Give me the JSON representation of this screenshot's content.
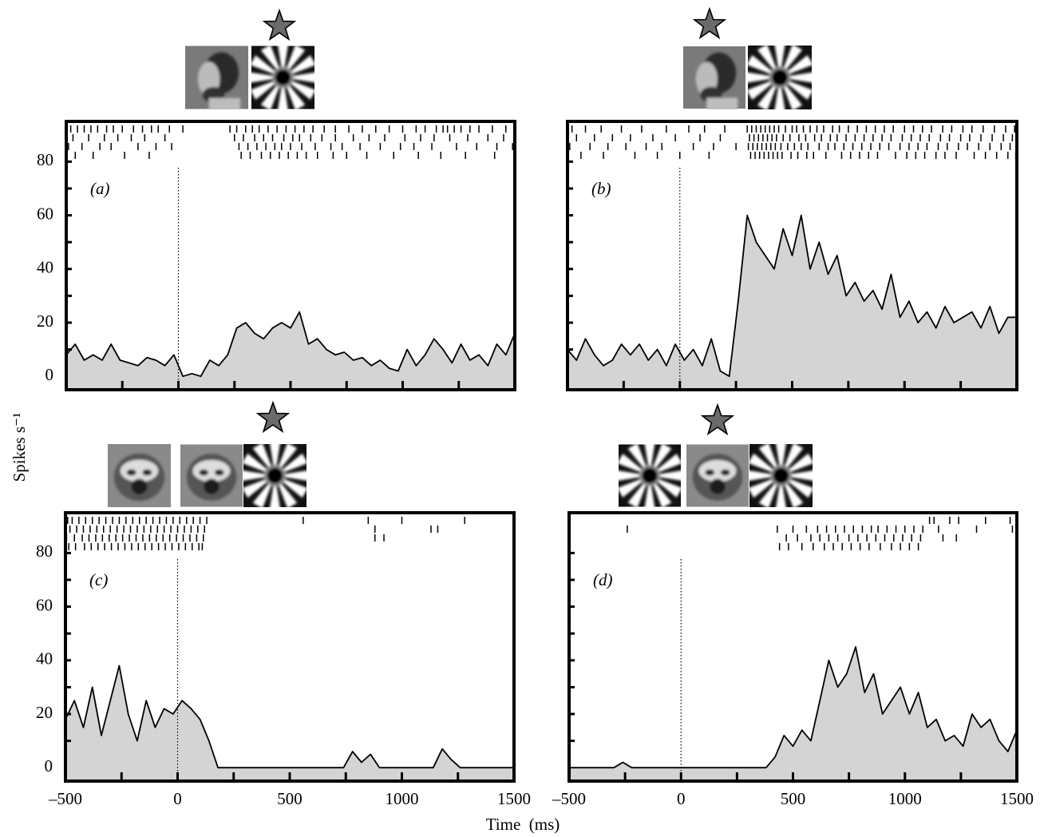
{
  "chart_data": [
    {
      "type": "area",
      "label": "(a)",
      "xlim": [
        -500,
        1500
      ],
      "ylim": [
        -5,
        95
      ],
      "vline": 0,
      "ytick_marks": [
        10,
        20,
        30,
        40,
        50,
        60,
        70,
        80
      ],
      "yticks": [
        0,
        20,
        40,
        60,
        80
      ],
      "xtick_marks": [
        -250,
        0,
        250,
        500,
        750,
        1000,
        1250
      ],
      "x": [
        -500,
        -460,
        -420,
        -380,
        -340,
        -300,
        -260,
        -220,
        -180,
        -140,
        -100,
        -60,
        -20,
        20,
        60,
        100,
        140,
        180,
        220,
        260,
        300,
        340,
        380,
        420,
        460,
        500,
        540,
        580,
        620,
        660,
        700,
        740,
        780,
        820,
        860,
        900,
        940,
        980,
        1020,
        1060,
        1100,
        1140,
        1180,
        1220,
        1260,
        1300,
        1340,
        1380,
        1420,
        1460,
        1500
      ],
      "values": [
        8,
        12,
        6,
        8,
        6,
        12,
        6,
        5,
        4,
        7,
        6,
        4,
        8,
        0,
        1,
        0,
        6,
        4,
        8,
        18,
        20,
        16,
        14,
        18,
        20,
        18,
        24,
        12,
        14,
        10,
        8,
        9,
        6,
        7,
        4,
        6,
        3,
        2,
        10,
        4,
        8,
        14,
        10,
        5,
        12,
        6,
        8,
        4,
        12,
        8,
        16
      ],
      "raster": [
        [
          -480,
          -450,
          -420,
          -390,
          -360,
          -320,
          -290,
          -250,
          -200,
          -160,
          -120,
          -90,
          -40,
          20,
          230,
          260,
          300,
          330,
          360,
          400,
          440,
          480,
          520,
          560,
          600,
          650,
          700,
          760,
          820,
          880,
          940,
          1000,
          1060,
          1100,
          1150,
          1180,
          1200,
          1230,
          1260,
          1300,
          1340,
          1400,
          1460
        ],
        [
          -470,
          -400,
          -330,
          -270,
          -210,
          -150,
          -60,
          250,
          290,
          340,
          380,
          420,
          470,
          510,
          540,
          590,
          640,
          700,
          780,
          850,
          920,
          1010,
          1080,
          1140,
          1210,
          1290,
          1380,
          1450
        ],
        [
          -490,
          -430,
          -350,
          -300,
          -180,
          -100,
          -30,
          270,
          310,
          350,
          390,
          430,
          460,
          500,
          550,
          610,
          680,
          730,
          810,
          900,
          990,
          1050,
          1130,
          1240,
          1330,
          1420,
          1490
        ],
        [
          -460,
          -380,
          -240,
          -130,
          280,
          320,
          370,
          410,
          450,
          490,
          530,
          570,
          620,
          690,
          750,
          840,
          960,
          1070,
          1170,
          1280,
          1410
        ]
      ]
    },
    {
      "type": "area",
      "label": "(b)",
      "xlim": [
        -500,
        1500
      ],
      "ylim": [
        -5,
        95
      ],
      "vline": 0,
      "ytick_marks": [
        10,
        20,
        30,
        40,
        50,
        60,
        70,
        80
      ],
      "xtick_marks": [
        -250,
        0,
        250,
        500,
        750,
        1000,
        1250
      ],
      "x": [
        -500,
        -460,
        -420,
        -380,
        -340,
        -300,
        -260,
        -220,
        -180,
        -140,
        -100,
        -60,
        -20,
        20,
        60,
        100,
        140,
        180,
        220,
        260,
        300,
        340,
        380,
        420,
        460,
        500,
        540,
        580,
        620,
        660,
        700,
        740,
        780,
        820,
        860,
        900,
        940,
        980,
        1020,
        1060,
        1100,
        1140,
        1180,
        1220,
        1260,
        1300,
        1340,
        1380,
        1420,
        1460,
        1500
      ],
      "values": [
        10,
        6,
        14,
        8,
        4,
        6,
        12,
        8,
        12,
        6,
        10,
        4,
        12,
        6,
        10,
        4,
        14,
        2,
        0,
        28,
        60,
        50,
        45,
        40,
        55,
        45,
        60,
        40,
        50,
        38,
        45,
        30,
        35,
        28,
        32,
        25,
        38,
        22,
        28,
        20,
        24,
        18,
        26,
        20,
        22,
        24,
        18,
        26,
        16,
        22,
        22
      ],
      "raster": [
        [
          -480,
          -420,
          -350,
          -260,
          -170,
          -60,
          40,
          110,
          200,
          300,
          320,
          340,
          360,
          380,
          400,
          420,
          440,
          470,
          500,
          520,
          550,
          580,
          610,
          640,
          680,
          710,
          750,
          790,
          830,
          870,
          910,
          950,
          1000,
          1040,
          1080,
          1120,
          1170,
          1210,
          1260,
          1300,
          1350,
          1400,
          1450,
          1490
        ],
        [
          -460,
          -380,
          -300,
          -220,
          -120,
          -20,
          90,
          180,
          310,
          330,
          350,
          370,
          390,
          410,
          430,
          460,
          490,
          530,
          560,
          600,
          630,
          670,
          700,
          740,
          780,
          820,
          860,
          900,
          940,
          990,
          1030,
          1070,
          1110,
          1160,
          1200,
          1250,
          1290,
          1340,
          1390,
          1440,
          1480
        ],
        [
          -490,
          -400,
          -320,
          -240,
          -150,
          -80,
          60,
          150,
          250,
          305,
          325,
          345,
          365,
          385,
          405,
          425,
          450,
          480,
          510,
          540,
          570,
          620,
          660,
          690,
          730,
          770,
          810,
          850,
          890,
          930,
          980,
          1020,
          1060,
          1100,
          1150,
          1190,
          1240,
          1280,
          1330,
          1380,
          1430,
          1470
        ],
        [
          -440,
          -340,
          -200,
          -100,
          0,
          130,
          315,
          335,
          355,
          375,
          395,
          415,
          435,
          455,
          495,
          525,
          565,
          595,
          650,
          720,
          760,
          800,
          840,
          880,
          960,
          1010,
          1050,
          1090,
          1140,
          1180,
          1230,
          1310,
          1360,
          1410,
          1460,
          1495
        ]
      ]
    },
    {
      "type": "area",
      "label": "(c)",
      "xlim": [
        -500,
        1500
      ],
      "ylim": [
        -5,
        95
      ],
      "vline": 0,
      "ytick_marks": [
        10,
        20,
        30,
        40,
        50,
        60,
        70,
        80
      ],
      "yticks": [
        0,
        20,
        40,
        60,
        80
      ],
      "xtick_marks": [
        -250,
        0,
        250,
        500,
        750,
        1000,
        1250
      ],
      "xticks": [
        {
          "value": -500,
          "label": "–500"
        },
        0,
        500,
        1000,
        1500
      ],
      "x": [
        -500,
        -460,
        -420,
        -380,
        -340,
        -300,
        -260,
        -220,
        -180,
        -140,
        -100,
        -60,
        -20,
        20,
        60,
        100,
        140,
        180,
        220,
        260,
        300,
        340,
        380,
        420,
        460,
        500,
        540,
        580,
        620,
        660,
        700,
        740,
        780,
        820,
        860,
        900,
        940,
        980,
        1020,
        1060,
        1100,
        1140,
        1180,
        1220,
        1260,
        1300,
        1340,
        1380,
        1420,
        1460,
        1500
      ],
      "values": [
        18,
        25,
        15,
        30,
        12,
        25,
        38,
        20,
        10,
        25,
        15,
        22,
        20,
        25,
        22,
        18,
        10,
        0,
        0,
        0,
        0,
        0,
        0,
        0,
        0,
        0,
        0,
        0,
        0,
        0,
        0,
        0,
        6,
        2,
        5,
        0,
        0,
        0,
        0,
        0,
        0,
        0,
        7,
        3,
        0,
        0,
        0,
        0,
        0,
        0,
        0
      ],
      "raster": [
        [
          -490,
          -470,
          -440,
          -410,
          -380,
          -350,
          -320,
          -290,
          -260,
          -230,
          -200,
          -170,
          -140,
          -110,
          -80,
          -50,
          -20,
          10,
          40,
          70,
          100,
          130,
          560,
          850,
          1000,
          1280
        ],
        [
          -480,
          -450,
          -420,
          -390,
          -360,
          -330,
          -300,
          -270,
          -240,
          -210,
          -180,
          -150,
          -120,
          -90,
          -60,
          -30,
          0,
          30,
          60,
          90,
          120,
          880,
          1130,
          1160
        ],
        [
          -495,
          -460,
          -425,
          -395,
          -365,
          -335,
          -305,
          -275,
          -245,
          -215,
          -185,
          -155,
          -125,
          -95,
          -65,
          -35,
          -5,
          25,
          55,
          85,
          115,
          880,
          920
        ],
        [
          -485,
          -455,
          -415,
          -385,
          -355,
          -325,
          -295,
          -265,
          -235,
          -205,
          -175,
          -145,
          -115,
          -85,
          -55,
          -25,
          5,
          35,
          65,
          95,
          110
        ]
      ]
    },
    {
      "type": "area",
      "label": "(d)",
      "xlim": [
        -500,
        1500
      ],
      "ylim": [
        -5,
        95
      ],
      "vline": 0,
      "ytick_marks": [
        10,
        20,
        30,
        40,
        50,
        60,
        70,
        80
      ],
      "xtick_marks": [
        -250,
        0,
        250,
        500,
        750,
        1000,
        1250
      ],
      "xticks": [
        {
          "value": -500,
          "label": "–500"
        },
        0,
        500,
        1000,
        1500
      ],
      "x": [
        -500,
        -460,
        -420,
        -380,
        -340,
        -300,
        -260,
        -220,
        -180,
        -140,
        -100,
        -60,
        -20,
        20,
        60,
        100,
        140,
        180,
        220,
        260,
        300,
        340,
        380,
        420,
        460,
        500,
        540,
        580,
        620,
        660,
        700,
        740,
        780,
        820,
        860,
        900,
        940,
        980,
        1020,
        1060,
        1100,
        1140,
        1180,
        1220,
        1260,
        1300,
        1340,
        1380,
        1420,
        1460,
        1500
      ],
      "values": [
        0,
        0,
        0,
        0,
        0,
        0,
        2,
        0,
        0,
        0,
        0,
        0,
        0,
        0,
        0,
        0,
        0,
        0,
        0,
        0,
        0,
        0,
        0,
        4,
        12,
        8,
        14,
        10,
        25,
        40,
        30,
        35,
        45,
        28,
        35,
        20,
        25,
        30,
        20,
        28,
        15,
        18,
        10,
        12,
        8,
        20,
        15,
        18,
        10,
        6,
        14
      ],
      "raster": [
        [
          1110,
          1130,
          1200,
          1240,
          1360,
          1470
        ],
        [
          -240,
          430,
          500,
          560,
          610,
          650,
          690,
          730,
          770,
          810,
          850,
          880,
          920,
          960,
          1000,
          1040,
          1080,
          1150,
          1320,
          1480
        ],
        [
          470,
          520,
          580,
          620,
          660,
          700,
          750,
          790,
          830,
          870,
          910,
          950,
          990,
          1030,
          1070,
          1170,
          1230
        ],
        [
          440,
          480,
          540,
          590,
          640,
          680,
          720,
          760,
          800,
          840,
          890,
          940,
          980,
          1020,
          1060
        ]
      ]
    }
  ],
  "ylabel": "Spikes s⁻¹",
  "xlabel": "Time  (ms)"
}
